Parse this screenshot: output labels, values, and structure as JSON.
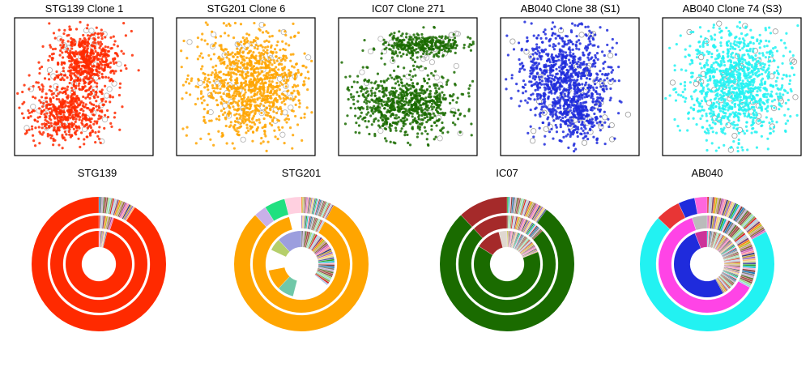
{
  "figure": {
    "top_row": "scatter plots of clone cells",
    "bottom_row": "multi-ring sunburst (clone composition)"
  },
  "chart_data": [
    {
      "type": "scatter",
      "title": "STG139 Clone 1",
      "color": "#ff2a00",
      "outline_color": "#b0b0b0",
      "shape": "two-lobes"
    },
    {
      "type": "scatter",
      "title": "STG201 Clone 6",
      "color": "#ffa500",
      "outline_color": "#b0b0b0",
      "shape": "round-blob"
    },
    {
      "type": "scatter",
      "title": "IC07 Clone 271",
      "color": "#1a6b00",
      "outline_color": "#b0b0b0",
      "shape": "upper-lower-bands"
    },
    {
      "type": "scatter",
      "title": "AB040 Clone 38 (S1)",
      "color": "#1f2bdc",
      "outline_color": "#9a9a9a",
      "shape": "triangle-blob"
    },
    {
      "type": "scatter",
      "title": "AB040 Clone 74 (S3)",
      "color": "#22f2f2",
      "outline_color": "#9a9a9a",
      "shape": "round-blob"
    },
    {
      "type": "pie",
      "title": "STG139",
      "rings": [
        {
          "slices": [
            {
              "v": 91,
              "c": "#ff2a00"
            }
          ],
          "multicolor": {
            "from": 91,
            "count": 24
          }
        },
        {
          "slices": [
            {
              "v": 95,
              "c": "#ff2a00"
            }
          ],
          "multicolor": {
            "from": 95,
            "count": 10
          }
        },
        {
          "slices": [
            {
              "v": 96,
              "c": "#ff2a00"
            }
          ],
          "multicolor": {
            "from": 96,
            "count": 8
          }
        }
      ]
    },
    {
      "type": "pie",
      "title": "STG201",
      "rings": [
        {
          "slices": [
            {
              "v": 80,
              "c": "#ffa500"
            },
            {
              "v": 3,
              "c": "#c8b0e8"
            },
            {
              "v": 5,
              "c": "#20e080"
            },
            {
              "v": 4,
              "c": "#ffd0e0"
            }
          ],
          "multicolor": {
            "from": 92,
            "count": 30
          }
        },
        {
          "slices": [
            {
              "v": 88,
              "c": "#ffa500"
            },
            {
              "v": 4,
              "c": "#ffffff"
            }
          ],
          "multicolor": {
            "from": 92,
            "count": 20
          }
        },
        {
          "slices": [
            {
              "v": 12,
              "c": "#ffffff"
            },
            {
              "v": 6,
              "c": "#ffffff"
            },
            {
              "v": 8,
              "c": "#70c8a8"
            },
            {
              "v": 10,
              "c": "#ffa500"
            },
            {
              "v": 10,
              "c": "#ffffff"
            },
            {
              "v": 6,
              "c": "#b5cf6b"
            },
            {
              "v": 12,
              "c": "#9c9ede"
            }
          ],
          "multicolor": {
            "from": 64,
            "count": 40
          }
        }
      ]
    },
    {
      "type": "pie",
      "title": "IC07",
      "rings": [
        {
          "slices": [
            {
              "v": 78,
              "c": "#1a6b00"
            },
            {
              "v": 12,
              "c": "#a52a2a"
            }
          ],
          "multicolor": {
            "from": 90,
            "count": 30
          }
        },
        {
          "slices": [
            {
              "v": 75,
              "c": "#1a6b00"
            },
            {
              "v": 12,
              "c": "#a52a2a"
            }
          ],
          "multicolor": {
            "from": 87,
            "count": 30
          }
        },
        {
          "slices": [
            {
              "v": 65,
              "c": "#1a6b00"
            },
            {
              "v": 12,
              "c": "#a52a2a"
            },
            {
              "v": 4,
              "c": "#e0d8d0"
            }
          ],
          "multicolor": {
            "from": 81,
            "count": 40
          }
        }
      ]
    },
    {
      "type": "pie",
      "title": "AB040",
      "rings": [
        {
          "slices": [
            {
              "v": 70,
              "c": "#22f2f2"
            },
            {
              "v": 6,
              "c": "#e83535"
            },
            {
              "v": 4,
              "c": "#1f2bdc"
            },
            {
              "v": 3,
              "c": "#ff66dd"
            }
          ],
          "multicolor": {
            "from": 83,
            "count": 40
          }
        },
        {
          "slices": [
            {
              "v": 62,
              "c": "#ff44e6"
            },
            {
              "v": 5,
              "c": "#bbbbbb"
            }
          ],
          "multicolor": {
            "from": 67,
            "count": 50
          }
        },
        {
          "slices": [
            {
              "v": 52,
              "c": "#1f2bdc"
            },
            {
              "v": 6,
              "c": "#cc3399"
            }
          ],
          "multicolor": {
            "from": 58,
            "count": 80
          }
        }
      ]
    }
  ]
}
